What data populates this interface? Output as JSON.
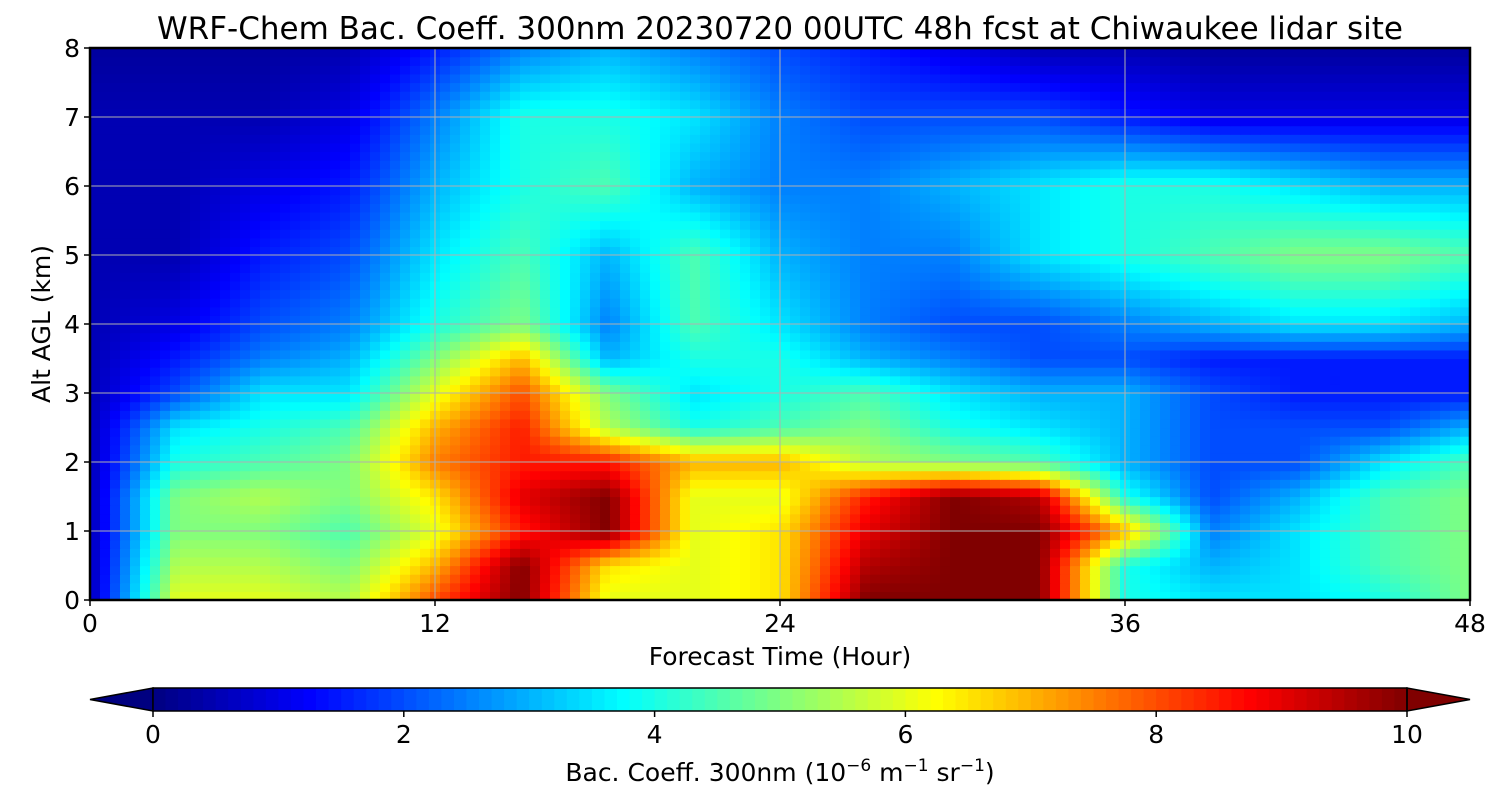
{
  "chart_data": {
    "type": "heatmap",
    "title": "WRF-Chem Bac. Coeff. 300nm  20230720 00UTC 48h fcst at Chiwaukee lidar site",
    "xlabel": "Forecast Time (Hour)",
    "ylabel": "Alt AGL (km)",
    "xlim": [
      0,
      48
    ],
    "ylim": [
      0,
      8
    ],
    "xticks": [
      0,
      12,
      24,
      36,
      48
    ],
    "yticks": [
      0,
      1,
      2,
      3,
      4,
      5,
      6,
      7,
      8
    ],
    "grid": true,
    "colormap": "jet",
    "colorbar": {
      "label_main": "Bac. Coeff. 300nm  (10",
      "label_exp1": "−6",
      "label_mid1": " m",
      "label_exp2": "−1",
      "label_mid2": " sr",
      "label_exp3": "−1",
      "label_end": ")",
      "range": [
        0,
        10
      ],
      "ticks": [
        0,
        2,
        4,
        6,
        8,
        10
      ],
      "extend": "both",
      "orientation": "horizontal"
    },
    "x": [
      0,
      3,
      6,
      9,
      12,
      15,
      18,
      21,
      24,
      27,
      30,
      33,
      36,
      39,
      42,
      45,
      48
    ],
    "y": [
      0,
      0.5,
      1,
      1.5,
      2,
      2.5,
      3,
      3.5,
      4,
      5,
      6,
      7,
      8
    ],
    "z": [
      [
        0.5,
        6.0,
        6.0,
        5.5,
        8.0,
        10.0,
        6.0,
        6.0,
        6.5,
        10.0,
        10.0,
        10.0,
        4.0,
        3.5,
        3.5,
        4.0,
        5.0
      ],
      [
        0.5,
        5.5,
        5.5,
        5.0,
        7.0,
        10.0,
        6.5,
        6.0,
        6.5,
        9.5,
        10.0,
        10.0,
        4.0,
        3.0,
        3.5,
        4.5,
        5.0
      ],
      [
        0.5,
        5.0,
        5.0,
        4.5,
        6.0,
        8.5,
        10.0,
        6.0,
        6.5,
        9.0,
        10.0,
        10.0,
        7.0,
        2.5,
        3.5,
        4.5,
        5.0
      ],
      [
        0.5,
        5.0,
        5.5,
        5.0,
        6.5,
        9.0,
        10.0,
        6.0,
        6.0,
        8.5,
        10.0,
        9.5,
        4.0,
        2.0,
        3.0,
        4.5,
        5.0
      ],
      [
        0.5,
        4.0,
        4.5,
        5.0,
        7.5,
        8.5,
        8.5,
        7.0,
        7.0,
        5.5,
        5.0,
        4.5,
        3.0,
        2.0,
        2.0,
        3.5,
        4.5
      ],
      [
        0.5,
        3.5,
        4.0,
        4.5,
        7.0,
        8.5,
        5.5,
        4.0,
        4.5,
        5.0,
        4.0,
        3.5,
        3.0,
        2.0,
        2.0,
        2.0,
        3.0
      ],
      [
        0.5,
        2.0,
        3.5,
        3.5,
        6.0,
        8.0,
        5.0,
        3.5,
        4.0,
        4.5,
        3.5,
        3.0,
        3.0,
        2.0,
        1.5,
        1.5,
        1.5
      ],
      [
        0.5,
        1.5,
        2.5,
        3.0,
        5.0,
        7.0,
        3.0,
        4.0,
        4.0,
        3.0,
        2.5,
        2.0,
        2.0,
        1.5,
        1.5,
        1.5,
        1.5
      ],
      [
        0.5,
        1.0,
        2.0,
        2.5,
        4.0,
        5.0,
        2.5,
        4.5,
        3.5,
        2.5,
        2.0,
        2.0,
        2.5,
        3.0,
        3.5,
        3.5,
        3.0
      ],
      [
        0.5,
        0.5,
        1.5,
        2.0,
        3.5,
        4.5,
        3.0,
        4.5,
        3.0,
        2.5,
        2.5,
        3.5,
        4.0,
        4.5,
        5.0,
        5.0,
        4.5
      ],
      [
        0.5,
        0.5,
        1.0,
        1.5,
        3.0,
        4.0,
        4.5,
        3.0,
        2.5,
        2.5,
        3.0,
        3.5,
        4.0,
        4.0,
        3.5,
        3.0,
        3.0
      ],
      [
        0.5,
        0.5,
        0.5,
        1.0,
        2.5,
        4.0,
        4.0,
        3.5,
        2.5,
        2.0,
        2.0,
        2.0,
        1.5,
        1.0,
        1.0,
        1.0,
        1.0
      ],
      [
        0.3,
        0.3,
        0.3,
        0.5,
        1.5,
        2.5,
        3.0,
        2.5,
        2.0,
        1.5,
        1.0,
        0.5,
        0.5,
        0.3,
        0.3,
        0.3,
        0.3
      ]
    ]
  }
}
